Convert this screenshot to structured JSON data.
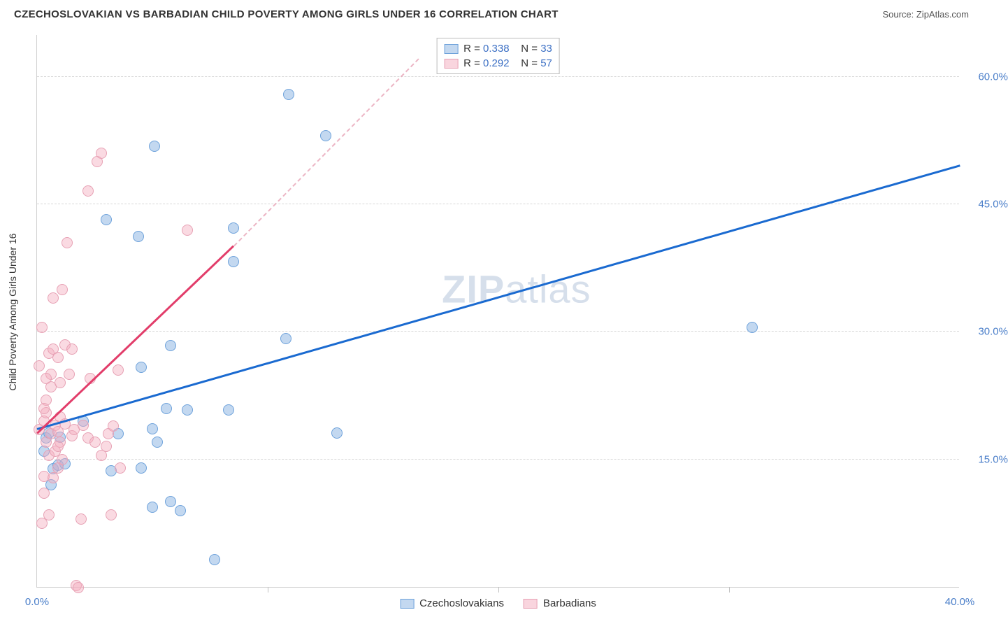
{
  "header": {
    "title": "CZECHOSLOVAKIAN VS BARBADIAN CHILD POVERTY AMONG GIRLS UNDER 16 CORRELATION CHART",
    "source_prefix": "Source: ",
    "source_name": "ZipAtlas.com"
  },
  "chart": {
    "type": "scatter",
    "ylabel": "Child Poverty Among Girls Under 16",
    "xlim": [
      0,
      40
    ],
    "ylim": [
      0,
      65
    ],
    "xtick_values": [
      0,
      40
    ],
    "xtick_labels": [
      "0.0%",
      "40.0%"
    ],
    "xtick_minor": [
      10,
      20,
      30
    ],
    "ytick_values": [
      15,
      30,
      45,
      60
    ],
    "ytick_labels": [
      "15.0%",
      "30.0%",
      "45.0%",
      "60.0%"
    ],
    "background_color": "#ffffff",
    "grid_color": "#d8d8d8",
    "axis_color": "#d0d0d0",
    "tick_label_color": "#4a7ec9",
    "series": [
      {
        "name": "Czechoslovakians",
        "color_fill": "rgba(135,178,226,0.5)",
        "color_stroke": "#6ea2db",
        "trend_color": "#1a6ad0",
        "trend_dash_color": "rgba(135,178,226,0.7)",
        "R": "0.338",
        "N": "33",
        "trend": {
          "x1": 0,
          "y1": 18.5,
          "x2": 40,
          "y2": 49.5
        },
        "points": [
          [
            0.4,
            17.5
          ],
          [
            0.5,
            18.1
          ],
          [
            0.7,
            13.9
          ],
          [
            0.9,
            14.3
          ],
          [
            1.0,
            17.6
          ],
          [
            1.2,
            14.5
          ],
          [
            3.2,
            13.7
          ],
          [
            3.0,
            43.2
          ],
          [
            3.5,
            18.0
          ],
          [
            4.4,
            41.2
          ],
          [
            4.5,
            14.0
          ],
          [
            4.5,
            25.8
          ],
          [
            5.0,
            9.4
          ],
          [
            5.0,
            18.6
          ],
          [
            5.1,
            51.8
          ],
          [
            5.2,
            17.0
          ],
          [
            5.6,
            21.0
          ],
          [
            5.8,
            28.4
          ],
          [
            5.8,
            10.0
          ],
          [
            6.2,
            9.0
          ],
          [
            6.5,
            20.8
          ],
          [
            7.7,
            3.2
          ],
          [
            8.3,
            20.8
          ],
          [
            8.5,
            38.3
          ],
          [
            8.5,
            42.2
          ],
          [
            10.8,
            29.2
          ],
          [
            10.9,
            57.9
          ],
          [
            12.5,
            53.1
          ],
          [
            13.0,
            18.1
          ],
          [
            0.6,
            12.0
          ],
          [
            0.3,
            16.0
          ],
          [
            2.0,
            19.5
          ],
          [
            31.0,
            30.5
          ]
        ]
      },
      {
        "name": "Barbadians",
        "color_fill": "rgba(243,172,190,0.45)",
        "color_stroke": "#e7a2b5",
        "trend_color": "#e23d6a",
        "trend_dash_color": "rgba(231,162,181,0.8)",
        "R": "0.292",
        "N": "57",
        "trend": {
          "x1": 0,
          "y1": 18.0,
          "x2": 8.5,
          "y2": 40.0
        },
        "trend_dash": {
          "x1": 8.5,
          "y1": 40.0,
          "x2": 16.5,
          "y2": 62.0
        },
        "points": [
          [
            0.1,
            18.5
          ],
          [
            0.1,
            26.0
          ],
          [
            0.2,
            30.5
          ],
          [
            0.2,
            7.5
          ],
          [
            0.3,
            11.0
          ],
          [
            0.3,
            13.0
          ],
          [
            0.3,
            19.5
          ],
          [
            0.4,
            17.0
          ],
          [
            0.4,
            20.5
          ],
          [
            0.4,
            22.0
          ],
          [
            0.5,
            8.5
          ],
          [
            0.5,
            15.5
          ],
          [
            0.5,
            27.5
          ],
          [
            0.6,
            18.0
          ],
          [
            0.6,
            23.5
          ],
          [
            0.6,
            25.0
          ],
          [
            0.7,
            12.8
          ],
          [
            0.7,
            28.0
          ],
          [
            0.7,
            34.0
          ],
          [
            0.8,
            16.0
          ],
          [
            0.8,
            19.0
          ],
          [
            0.9,
            14.0
          ],
          [
            0.9,
            18.3
          ],
          [
            0.9,
            27.0
          ],
          [
            1.0,
            17.0
          ],
          [
            1.0,
            20.0
          ],
          [
            1.0,
            24.0
          ],
          [
            1.1,
            35.0
          ],
          [
            1.1,
            15.0
          ],
          [
            1.2,
            28.5
          ],
          [
            1.2,
            19.2
          ],
          [
            1.3,
            40.5
          ],
          [
            1.4,
            25.0
          ],
          [
            1.5,
            28.0
          ],
          [
            1.5,
            17.8
          ],
          [
            1.6,
            18.5
          ],
          [
            1.7,
            0.2
          ],
          [
            1.8,
            -0.1
          ],
          [
            1.9,
            8.0
          ],
          [
            2.0,
            19.0
          ],
          [
            2.2,
            17.5
          ],
          [
            2.2,
            46.6
          ],
          [
            2.3,
            24.5
          ],
          [
            2.5,
            17.0
          ],
          [
            2.6,
            50.0
          ],
          [
            2.8,
            51.0
          ],
          [
            2.8,
            15.5
          ],
          [
            3.0,
            16.5
          ],
          [
            3.1,
            18.0
          ],
          [
            3.2,
            8.5
          ],
          [
            3.3,
            18.9
          ],
          [
            3.5,
            25.5
          ],
          [
            3.6,
            14.0
          ],
          [
            6.5,
            42.0
          ],
          [
            0.3,
            21.0
          ],
          [
            0.4,
            24.5
          ],
          [
            0.9,
            16.5
          ]
        ]
      }
    ],
    "legend_top": {
      "r_label": "R =",
      "n_label": "N ="
    },
    "legend_bottom": [
      "Czechoslovakians",
      "Barbadians"
    ],
    "watermark": {
      "bold": "ZIP",
      "rest": "atlas"
    }
  }
}
